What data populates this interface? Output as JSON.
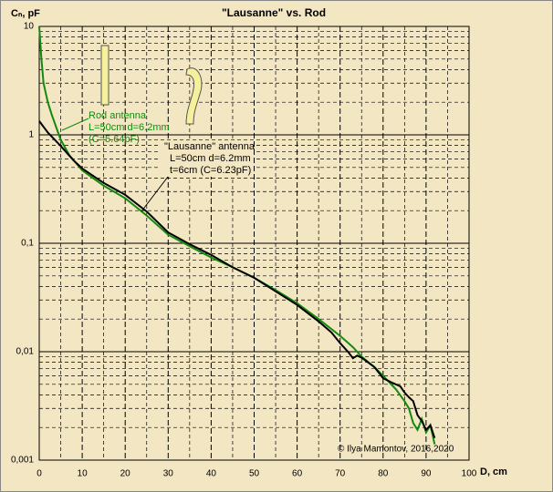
{
  "chart_data": {
    "type": "line",
    "title": "\"Lausanne\" vs. Rod",
    "y_label": "Cₙ, pF",
    "x_label": "D, cm",
    "log_y": true,
    "grid": true,
    "minor_grid": true,
    "xlim": [
      0,
      100
    ],
    "xticks": [
      0,
      10,
      20,
      30,
      40,
      50,
      60,
      70,
      80,
      90,
      100
    ],
    "ylim": [
      0.001,
      10
    ],
    "yticks": [
      10,
      1,
      {
        "value": 0.1,
        "label": "0,1"
      },
      {
        "value": 0.01,
        "label": "0,01"
      },
      {
        "value": 0.001,
        "label": "0,001"
      }
    ],
    "series": [
      {
        "name": "Rod antenna",
        "color": "#138a0f",
        "x": [
          0,
          0.5,
          1,
          2,
          3,
          5,
          7,
          10,
          15,
          20,
          25,
          30,
          35,
          40,
          45,
          50,
          55,
          60,
          65,
          70,
          73,
          75,
          78,
          80,
          83,
          85,
          86,
          87,
          88,
          89,
          90,
          91,
          92
        ],
        "values": [
          10,
          5,
          3,
          2,
          1.5,
          0.9,
          0.65,
          0.47,
          0.34,
          0.26,
          0.18,
          0.12,
          0.094,
          0.074,
          0.06,
          0.048,
          0.037,
          0.028,
          0.02,
          0.014,
          0.011,
          0.009,
          0.0072,
          0.006,
          0.0045,
          0.0035,
          0.003,
          0.0022,
          0.0019,
          0.0024,
          0.0018,
          0.0021,
          0.0014
        ]
      },
      {
        "name": "\"Lausanne\" antenna",
        "color": "#000000",
        "x": [
          0,
          2,
          5,
          8,
          10,
          15,
          20,
          25,
          30,
          35,
          40,
          45,
          50,
          55,
          60,
          65,
          68,
          70,
          72,
          73,
          74,
          75,
          78,
          80,
          82,
          84,
          85,
          86,
          87,
          88,
          89,
          90,
          91,
          92
        ],
        "values": [
          1.34,
          1.05,
          0.79,
          0.58,
          0.49,
          0.36,
          0.28,
          0.196,
          0.126,
          0.098,
          0.078,
          0.06,
          0.048,
          0.036,
          0.027,
          0.019,
          0.015,
          0.012,
          0.0098,
          0.0087,
          0.0092,
          0.0088,
          0.0072,
          0.0057,
          0.0052,
          0.0048,
          0.0042,
          0.0038,
          0.0035,
          0.0026,
          0.0023,
          0.0019,
          0.0021,
          0.0016
        ]
      }
    ],
    "annotations": [
      {
        "lines": [
          "Rod antenna",
          "L=50cm d=6.2mm",
          "(C=5.64pF)"
        ]
      },
      {
        "lines": [
          "\"Lausanne\" antenna",
          "L=50cm d=6.2mm",
          "t=6cm (C=6.23pF)"
        ]
      }
    ],
    "copyright": "© Ilya Mamontov, 2016,2020"
  }
}
